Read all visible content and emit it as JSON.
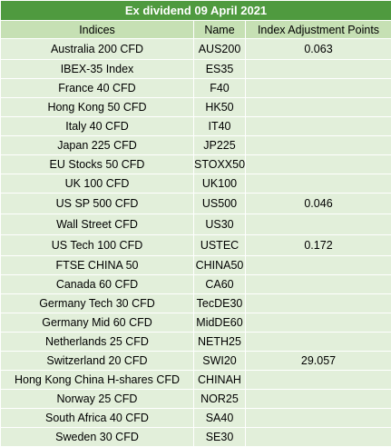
{
  "title": "Ex dividend 09 April 2021",
  "columns": [
    "Indices",
    "Name",
    "Index Adjustment Points"
  ],
  "rows": [
    {
      "index": "Australia 200 CFD",
      "name": "AUS200",
      "points": "0.063"
    },
    {
      "index": "IBEX-35 Index",
      "name": "ES35",
      "points": ""
    },
    {
      "index": "France 40 CFD",
      "name": "F40",
      "points": ""
    },
    {
      "index": "Hong Kong 50 CFD",
      "name": "HK50",
      "points": ""
    },
    {
      "index": "Italy 40 CFD",
      "name": "IT40",
      "points": ""
    },
    {
      "index": "Japan 225 CFD",
      "name": "JP225",
      "points": ""
    },
    {
      "index": "EU Stocks 50 CFD",
      "name": "STOXX50",
      "points": ""
    },
    {
      "index": "UK 100 CFD",
      "name": "UK100",
      "points": ""
    },
    {
      "index": "US SP 500 CFD",
      "name": "US500",
      "points": "0.046"
    },
    {
      "index": "Wall Street CFD",
      "name": "US30",
      "points": ""
    },
    {
      "index": "US Tech 100 CFD",
      "name": "USTEC",
      "points": "0.172"
    },
    {
      "index": "FTSE CHINA 50",
      "name": "CHINA50",
      "points": ""
    },
    {
      "index": "Canada 60 CFD",
      "name": "CA60",
      "points": ""
    },
    {
      "index": "Germany Tech 30 CFD",
      "name": "TecDE30",
      "points": ""
    },
    {
      "index": "Germany Mid 60 CFD",
      "name": "MidDE60",
      "points": ""
    },
    {
      "index": "Netherlands 25 CFD",
      "name": "NETH25",
      "points": ""
    },
    {
      "index": "Switzerland 20 CFD",
      "name": "SWI20",
      "points": "29.057"
    },
    {
      "index": "Hong Kong China H-shares CFD",
      "name": "CHINAH",
      "points": ""
    },
    {
      "index": "Norway 25 CFD",
      "name": "NOR25",
      "points": ""
    },
    {
      "index": "South Africa 40 CFD",
      "name": "SA40",
      "points": ""
    },
    {
      "index": "Sweden 30 CFD",
      "name": "SE30",
      "points": ""
    }
  ]
}
